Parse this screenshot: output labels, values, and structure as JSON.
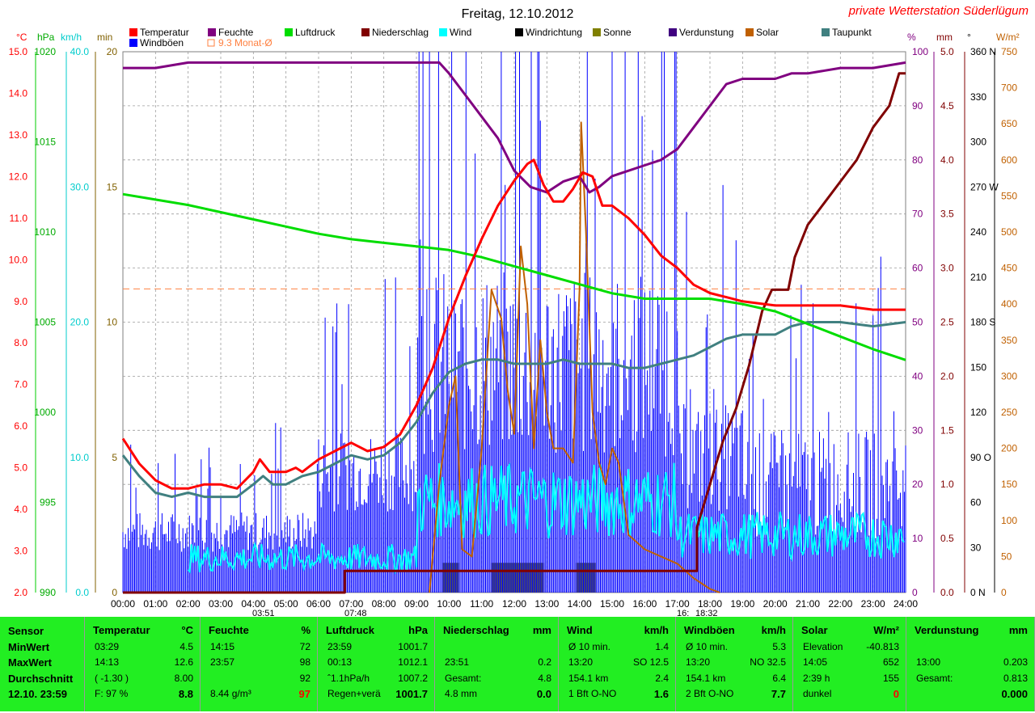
{
  "title": "Freitag, 12.10.2012",
  "station": "private Wetterstation Süderlügum",
  "legend": [
    {
      "label": "Temperatur",
      "color": "#ff0000"
    },
    {
      "label": "Feuchte",
      "color": "#800080"
    },
    {
      "label": "Luftdruck",
      "color": "#00dd00"
    },
    {
      "label": "Niederschlag",
      "color": "#800000"
    },
    {
      "label": "Wind",
      "color": "#00ffff"
    },
    {
      "label": "Windrichtung",
      "color": "#000000"
    },
    {
      "label": "Sonne",
      "color": "#808000"
    },
    {
      "label": "Verdunstung",
      "color": "#400080"
    },
    {
      "label": "Solar",
      "color": "#c06000"
    },
    {
      "label": "Taupunkt",
      "color": "#408080"
    },
    {
      "label": "Windböen",
      "color": "#0000ff"
    },
    {
      "label": "9.3 Monat-Ø",
      "color": "#ff8040"
    }
  ],
  "axes": {
    "left_units": [
      "°C",
      "hPa",
      "km/h",
      "min"
    ],
    "right_units": [
      "%",
      "mm",
      "°",
      "W/m²"
    ],
    "temp_ticks": [
      "15.0",
      "14.0",
      "13.0",
      "12.0",
      "11.0",
      "10.0",
      "9.0",
      "8.0",
      "7.0",
      "6.0",
      "5.0",
      "4.0",
      "3.0",
      "2.0"
    ],
    "press_ticks": [
      "1020",
      "1015",
      "1010",
      "1005",
      "1000",
      "995",
      "990"
    ],
    "wind_ticks": [
      "40.0",
      "30.0",
      "20.0",
      "10.0",
      "0.0"
    ],
    "sun_ticks": [
      "20",
      "15",
      "10",
      "5",
      "0"
    ],
    "hum_ticks": [
      "100",
      "90",
      "80",
      "70",
      "60",
      "50",
      "40",
      "30",
      "20",
      "10",
      "0"
    ],
    "rain_ticks": [
      "5.0",
      "4.5",
      "4.0",
      "3.5",
      "3.0",
      "2.5",
      "2.0",
      "1.5",
      "1.0",
      "0.5",
      "0.0"
    ],
    "dir_ticks": [
      "360 N",
      "330",
      "300",
      "270 W",
      "240",
      "210",
      "180 S",
      "150",
      "120",
      "90 O",
      "60",
      "30",
      "0 N"
    ],
    "solar_ticks": [
      "750",
      "700",
      "650",
      "600",
      "550",
      "500",
      "450",
      "400",
      "350",
      "300",
      "250",
      "200",
      "150",
      "100",
      "50",
      "0"
    ],
    "x_ticks": [
      "00:00",
      "01:00",
      "02:00",
      "03:00",
      "04:00",
      "05:00",
      "06:00",
      "07:00",
      "08:00",
      "09:00",
      "10:00",
      "11:00",
      "12:00",
      "13:00",
      "14:00",
      "15:00",
      "16:00",
      "17:00",
      "18:00",
      "19:00",
      "20:00",
      "21:00",
      "22:00",
      "23:00",
      "24:00"
    ],
    "sunrise_labels": [
      "03:51",
      "07:48"
    ],
    "sunset_labels": [
      "16:",
      "18:32"
    ]
  },
  "chart_data": {
    "type": "line",
    "x_unit": "hour",
    "temp_range": [
      2,
      15
    ],
    "press_range": [
      990,
      1020
    ],
    "hum_range": [
      0,
      100
    ],
    "rain_range": [
      0,
      5
    ],
    "solar_range": [
      0,
      750
    ],
    "sun_range": [
      0,
      20
    ],
    "month_avg_temp": 9.3,
    "series": [
      {
        "name": "Temperatur",
        "axis": "temp",
        "color": "#ff0000",
        "points": [
          [
            0,
            5.7
          ],
          [
            0.5,
            5.1
          ],
          [
            1,
            4.7
          ],
          [
            1.5,
            4.5
          ],
          [
            2,
            4.5
          ],
          [
            2.5,
            4.6
          ],
          [
            3,
            4.6
          ],
          [
            3.5,
            4.5
          ],
          [
            4,
            4.9
          ],
          [
            4.2,
            5.2
          ],
          [
            4.5,
            4.9
          ],
          [
            5,
            4.9
          ],
          [
            5.3,
            5.0
          ],
          [
            5.5,
            4.9
          ],
          [
            6,
            5.2
          ],
          [
            6.5,
            5.4
          ],
          [
            7,
            5.6
          ],
          [
            7.5,
            5.4
          ],
          [
            8,
            5.5
          ],
          [
            8.5,
            5.8
          ],
          [
            9,
            6.5
          ],
          [
            9.5,
            7.4
          ],
          [
            10,
            8.6
          ],
          [
            10.5,
            9.6
          ],
          [
            11,
            10.5
          ],
          [
            11.5,
            11.3
          ],
          [
            12,
            11.9
          ],
          [
            12.4,
            12.3
          ],
          [
            12.6,
            12.4
          ],
          [
            12.9,
            11.8
          ],
          [
            13.2,
            11.4
          ],
          [
            13.5,
            11.4
          ],
          [
            13.8,
            11.7
          ],
          [
            14.1,
            12.1
          ],
          [
            14.4,
            12.0
          ],
          [
            14.7,
            11.3
          ],
          [
            15,
            11.3
          ],
          [
            15.5,
            11.0
          ],
          [
            16,
            10.6
          ],
          [
            16.5,
            10.1
          ],
          [
            17,
            9.8
          ],
          [
            17.5,
            9.4
          ],
          [
            18,
            9.2
          ],
          [
            18.5,
            9.1
          ],
          [
            19,
            9.0
          ],
          [
            20,
            8.9
          ],
          [
            21,
            8.9
          ],
          [
            22,
            8.9
          ],
          [
            23,
            8.8
          ],
          [
            24,
            8.8
          ]
        ]
      },
      {
        "name": "Taupunkt",
        "axis": "temp",
        "color": "#408080",
        "points": [
          [
            0,
            5.3
          ],
          [
            0.5,
            4.8
          ],
          [
            1,
            4.4
          ],
          [
            1.5,
            4.3
          ],
          [
            2,
            4.4
          ],
          [
            2.5,
            4.3
          ],
          [
            3,
            4.3
          ],
          [
            3.5,
            4.3
          ],
          [
            4,
            4.6
          ],
          [
            4.3,
            4.8
          ],
          [
            4.6,
            4.6
          ],
          [
            5,
            4.6
          ],
          [
            5.5,
            4.8
          ],
          [
            6,
            4.9
          ],
          [
            6.5,
            5.1
          ],
          [
            7,
            5.3
          ],
          [
            7.5,
            5.2
          ],
          [
            8,
            5.3
          ],
          [
            8.5,
            5.6
          ],
          [
            9,
            6.1
          ],
          [
            9.5,
            6.8
          ],
          [
            10,
            7.3
          ],
          [
            10.5,
            7.5
          ],
          [
            11,
            7.6
          ],
          [
            11.5,
            7.6
          ],
          [
            12,
            7.5
          ],
          [
            12.5,
            7.5
          ],
          [
            13,
            7.5
          ],
          [
            13.5,
            7.6
          ],
          [
            14,
            7.5
          ],
          [
            14.5,
            7.5
          ],
          [
            15,
            7.5
          ],
          [
            15.5,
            7.4
          ],
          [
            16,
            7.4
          ],
          [
            16.5,
            7.5
          ],
          [
            17,
            7.6
          ],
          [
            17.5,
            7.7
          ],
          [
            18,
            7.9
          ],
          [
            18.5,
            8.1
          ],
          [
            19,
            8.2
          ],
          [
            20,
            8.2
          ],
          [
            20.5,
            8.4
          ],
          [
            21,
            8.5
          ],
          [
            22,
            8.5
          ],
          [
            23,
            8.4
          ],
          [
            24,
            8.5
          ]
        ]
      },
      {
        "name": "Luftdruck",
        "axis": "press",
        "color": "#00dd00",
        "points": [
          [
            0,
            1012.1
          ],
          [
            1,
            1011.8
          ],
          [
            2,
            1011.5
          ],
          [
            3,
            1011.1
          ],
          [
            4,
            1010.7
          ],
          [
            5,
            1010.3
          ],
          [
            6,
            1009.9
          ],
          [
            7,
            1009.6
          ],
          [
            8,
            1009.4
          ],
          [
            9,
            1009.2
          ],
          [
            10,
            1009.0
          ],
          [
            11,
            1008.6
          ],
          [
            12,
            1008.1
          ],
          [
            13,
            1007.6
          ],
          [
            14,
            1007.1
          ],
          [
            15,
            1006.6
          ],
          [
            16,
            1006.3
          ],
          [
            17,
            1006.3
          ],
          [
            18,
            1006.3
          ],
          [
            19,
            1006.0
          ],
          [
            20,
            1005.6
          ],
          [
            21,
            1004.9
          ],
          [
            22,
            1004.2
          ],
          [
            23,
            1003.5
          ],
          [
            24,
            1002.9
          ]
        ]
      },
      {
        "name": "Feuchte",
        "axis": "hum",
        "color": "#800080",
        "points": [
          [
            0,
            97
          ],
          [
            1,
            97
          ],
          [
            2,
            98
          ],
          [
            3,
            98
          ],
          [
            4,
            98
          ],
          [
            5,
            98
          ],
          [
            6,
            98
          ],
          [
            7,
            98
          ],
          [
            8,
            98
          ],
          [
            9,
            98
          ],
          [
            9.7,
            98
          ],
          [
            10,
            96
          ],
          [
            10.5,
            92
          ],
          [
            11,
            88
          ],
          [
            11.5,
            84
          ],
          [
            12,
            78
          ],
          [
            12.5,
            75
          ],
          [
            13,
            74
          ],
          [
            13.5,
            76
          ],
          [
            14,
            77
          ],
          [
            14.3,
            74
          ],
          [
            14.6,
            75
          ],
          [
            15,
            77
          ],
          [
            15.5,
            78
          ],
          [
            16,
            79
          ],
          [
            16.5,
            80
          ],
          [
            17,
            82
          ],
          [
            17.5,
            86
          ],
          [
            18,
            90
          ],
          [
            18.5,
            94
          ],
          [
            19,
            95
          ],
          [
            19.5,
            95
          ],
          [
            20,
            95
          ],
          [
            20.5,
            96
          ],
          [
            21,
            96
          ],
          [
            22,
            97
          ],
          [
            23,
            97
          ],
          [
            24,
            98
          ]
        ]
      },
      {
        "name": "Niederschlag",
        "axis": "rain",
        "color": "#800000",
        "points": [
          [
            0,
            0
          ],
          [
            6.8,
            0
          ],
          [
            6.8,
            0.2
          ],
          [
            17.6,
            0.2
          ],
          [
            17.6,
            0.6
          ],
          [
            18,
            1.0
          ],
          [
            18.4,
            1.4
          ],
          [
            18.8,
            1.7
          ],
          [
            19.2,
            2.1
          ],
          [
            19.6,
            2.6
          ],
          [
            19.9,
            2.8
          ],
          [
            20.4,
            2.8
          ],
          [
            20.6,
            3.1
          ],
          [
            21,
            3.4
          ],
          [
            21.5,
            3.6
          ],
          [
            22,
            3.8
          ],
          [
            22.5,
            4.0
          ],
          [
            23,
            4.3
          ],
          [
            23.5,
            4.5
          ],
          [
            23.8,
            4.8
          ],
          [
            24,
            4.8
          ]
        ]
      },
      {
        "name": "Solar",
        "axis": "solar",
        "color": "#c06000",
        "points": [
          [
            9.4,
            0
          ],
          [
            9.7,
            150
          ],
          [
            10,
            260
          ],
          [
            10.2,
            300
          ],
          [
            10.4,
            60
          ],
          [
            10.7,
            50
          ],
          [
            11,
            200
          ],
          [
            11.3,
            420
          ],
          [
            11.6,
            380
          ],
          [
            11.8,
            280
          ],
          [
            12,
            220
          ],
          [
            12.2,
            480
          ],
          [
            12.4,
            400
          ],
          [
            12.6,
            200
          ],
          [
            12.8,
            350
          ],
          [
            13,
            250
          ],
          [
            13.2,
            200
          ],
          [
            13.5,
            200
          ],
          [
            13.8,
            180
          ],
          [
            14,
            420
          ],
          [
            14.05,
            652
          ],
          [
            14.2,
            500
          ],
          [
            14.4,
            250
          ],
          [
            14.6,
            180
          ],
          [
            14.8,
            150
          ],
          [
            15,
            200
          ],
          [
            15.2,
            180
          ],
          [
            15.5,
            80
          ],
          [
            16,
            60
          ],
          [
            16.5,
            50
          ],
          [
            17,
            40
          ],
          [
            17.5,
            20
          ],
          [
            18,
            5
          ],
          [
            18.3,
            0
          ]
        ]
      }
    ],
    "sunshine_bars": [
      [
        9.8,
        10.3
      ],
      [
        11.3,
        12.9
      ],
      [
        13.9,
        14.5
      ]
    ],
    "wind_note": "Wind and gusts shown as dense high-frequency traces"
  },
  "table": {
    "row_labels": [
      "Sensor",
      "MinWert",
      "MaxWert",
      "Durchschnitt",
      "12.10. 23:59"
    ],
    "temperatur": {
      "head": "Temperatur",
      "unit": "°C",
      "rows": [
        [
          "03:29",
          "4.5"
        ],
        [
          "14:13",
          "12.6"
        ],
        [
          "( -1.30 )",
          "8.00"
        ],
        [
          "F: 97 %",
          "8.8"
        ]
      ]
    },
    "feuchte": {
      "head": "Feuchte",
      "unit": "%",
      "rows": [
        [
          "14:15",
          "72"
        ],
        [
          "23:57",
          "98"
        ],
        [
          "",
          "92"
        ],
        [
          "8.44 g/m³",
          "97"
        ]
      ]
    },
    "luftdruck": {
      "head": "Luftdruck",
      "unit": "hPa",
      "rows": [
        [
          "23:59",
          "1001.7"
        ],
        [
          "00:13",
          "1012.1"
        ],
        [
          "ˆ1.1hPa/h",
          "1007.2"
        ],
        [
          "Regen+verä",
          "1001.7"
        ]
      ]
    },
    "niederschlag": {
      "head": "Niederschlag",
      "unit": "mm",
      "rows": [
        [
          "",
          ""
        ],
        [
          "23:51",
          "0.2"
        ],
        [
          "Gesamt:",
          "4.8"
        ],
        [
          "4.8 mm",
          "0.0"
        ]
      ]
    },
    "wind": {
      "head": "Wind",
      "unit": "km/h",
      "rows": [
        [
          "Ø 10 min.",
          "1.4"
        ],
        [
          "13:20",
          "SO 12.5"
        ],
        [
          "154.1 km",
          "2.4"
        ],
        [
          "1 Bft O-NO",
          "1.6"
        ]
      ]
    },
    "windboeen": {
      "head": "Windböen",
      "unit": "km/h",
      "rows": [
        [
          "Ø 10 min.",
          "5.3"
        ],
        [
          "13:20",
          "NO 32.5"
        ],
        [
          "154.1 km",
          "6.4"
        ],
        [
          "2 Bft O-NO",
          "7.7"
        ]
      ]
    },
    "solar": {
      "head": "Solar",
      "unit": "W/m²",
      "rows": [
        [
          "Elevation",
          "-40.813"
        ],
        [
          "14:05",
          "652"
        ],
        [
          "2:39 h",
          "155"
        ],
        [
          "dunkel",
          "0"
        ]
      ]
    },
    "verdunstung": {
      "head": "Verdunstung",
      "unit": "mm",
      "rows": [
        [
          "",
          ""
        ],
        [
          "13:00",
          "0.203"
        ],
        [
          "Gesamt:",
          "0.813"
        ],
        [
          "",
          "0.000"
        ]
      ]
    }
  }
}
